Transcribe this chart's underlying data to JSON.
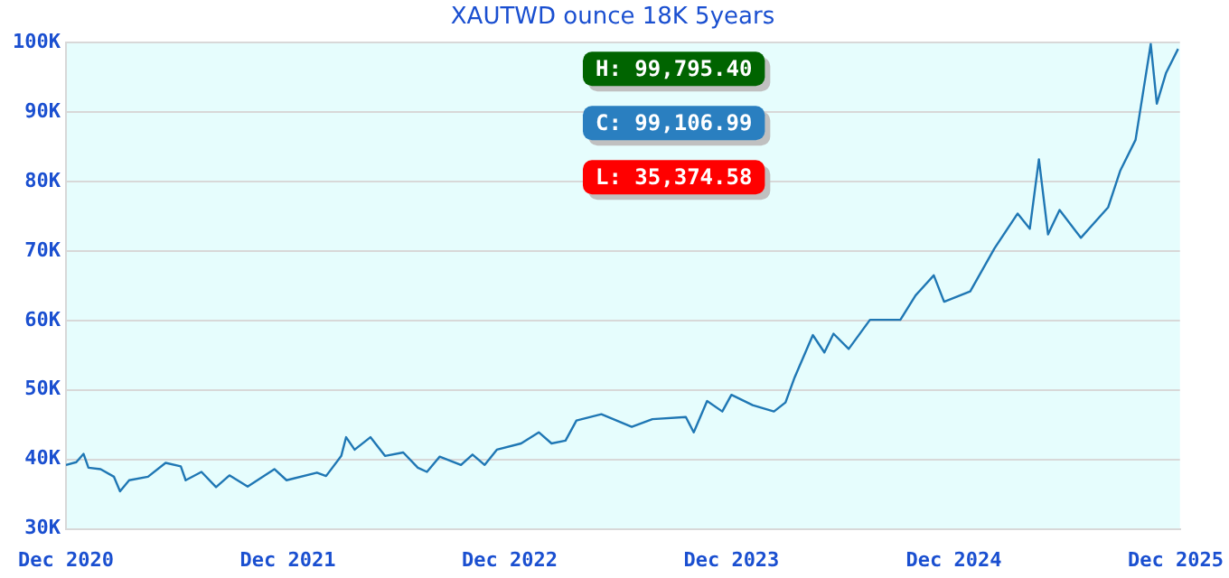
{
  "chart_data": {
    "type": "line",
    "title": "XAUTWD ounce 18K 5years",
    "annotations": [
      "H: 99,795.40",
      "C: 99,106.99",
      "L: 35,374.58"
    ],
    "x": [
      "2020-12-01",
      "2020-12-18",
      "2020-12-30",
      "2021-01-07",
      "2021-01-27",
      "2021-02-18",
      "2021-02-28",
      "2021-03-15",
      "2021-04-15",
      "2021-05-14",
      "2021-06-08",
      "2021-06-16",
      "2021-07-12",
      "2021-08-05",
      "2021-08-27",
      "2021-09-26",
      "2021-11-09",
      "2021-11-29",
      "2022-01-18",
      "2022-02-02",
      "2022-02-27",
      "2022-03-07",
      "2022-03-21",
      "2022-04-16",
      "2022-05-10",
      "2022-06-09",
      "2022-07-03",
      "2022-07-18",
      "2022-08-08",
      "2022-09-12",
      "2022-10-01",
      "2022-10-21",
      "2022-11-10",
      "2022-12-20",
      "2023-01-18",
      "2023-02-08",
      "2023-03-03",
      "2023-03-21",
      "2023-05-01",
      "2023-06-20",
      "2023-07-24",
      "2023-09-17",
      "2023-09-30",
      "2023-10-22",
      "2023-11-16",
      "2023-12-01",
      "2024-01-05",
      "2024-02-09",
      "2024-02-28",
      "2024-03-14",
      "2024-04-13",
      "2024-05-02",
      "2024-05-17",
      "2024-06-11",
      "2024-07-16",
      "2024-09-04",
      "2024-09-29",
      "2024-10-29",
      "2024-11-15",
      "2024-12-28",
      "2025-02-06",
      "2025-03-16",
      "2025-04-05",
      "2025-04-20",
      "2025-05-05",
      "2025-05-24",
      "2025-06-28",
      "2025-08-12",
      "2025-09-01",
      "2025-09-26",
      "2025-10-21",
      "2025-10-31",
      "2025-11-15",
      "2025-12-05"
    ],
    "series": [
      {
        "color": "#1f77b4",
        "values": [
          39200,
          39600,
          40800,
          38800,
          38600,
          37500,
          35400,
          37000,
          37500,
          39500,
          39000,
          37000,
          38200,
          36000,
          37700,
          36100,
          38600,
          37000,
          38100,
          37600,
          40500,
          43200,
          41400,
          43200,
          40500,
          41000,
          38800,
          38200,
          40400,
          39200,
          40700,
          39200,
          41400,
          42300,
          43900,
          42300,
          42700,
          45600,
          46500,
          44700,
          45800,
          46100,
          43900,
          48400,
          46900,
          49300,
          47800,
          46900,
          48200,
          51800,
          57900,
          55400,
          58100,
          55900,
          60100,
          60100,
          63600,
          66500,
          62700,
          64200,
          70400,
          75400,
          73200,
          83200,
          72400,
          75900,
          71900,
          76300,
          81600,
          86000,
          99800,
          91200,
          95600,
          99100
        ]
      }
    ],
    "xlim": [
      "2020-12-01",
      "2025-12-08"
    ],
    "xticks": [
      {
        "value": "2020-12-01",
        "label": "Dec 2020"
      },
      {
        "value": "2021-12-01",
        "label": "Dec 2021"
      },
      {
        "value": "2022-12-01",
        "label": "Dec 2022"
      },
      {
        "value": "2023-12-01",
        "label": "Dec 2023"
      },
      {
        "value": "2024-12-01",
        "label": "Dec 2024"
      },
      {
        "value": "2025-12-01",
        "label": "Dec 2025"
      }
    ],
    "ylim": [
      30000,
      100000
    ],
    "yticks": [
      {
        "value": 30000,
        "label": "30K"
      },
      {
        "value": 40000,
        "label": "40K"
      },
      {
        "value": 50000,
        "label": "50K"
      },
      {
        "value": 60000,
        "label": "60K"
      },
      {
        "value": 70000,
        "label": "70K"
      },
      {
        "value": 80000,
        "label": "80K"
      },
      {
        "value": 90000,
        "label": "90K"
      },
      {
        "value": 100000,
        "label": "100K"
      }
    ],
    "grid": "y",
    "legend": false,
    "marker": "none",
    "line_style": "solid"
  }
}
